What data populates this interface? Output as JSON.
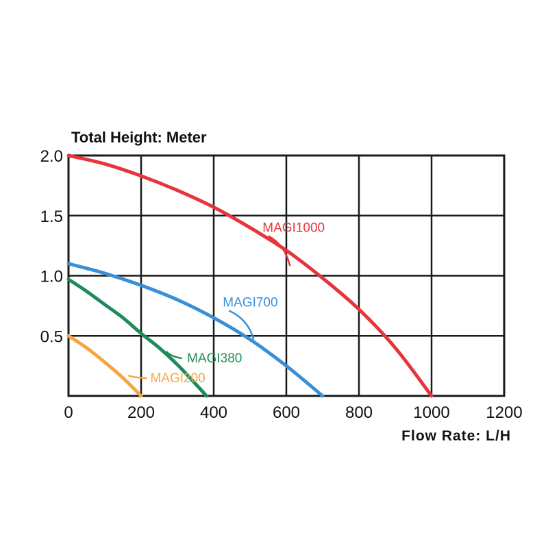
{
  "chart_data": {
    "type": "line",
    "title": "",
    "ylabel": "Total Height:  Meter",
    "xlabel": "Flow Rate:  L/H",
    "xlim": [
      0,
      1200
    ],
    "ylim": [
      0,
      2.0
    ],
    "x_ticks": [
      0,
      200,
      400,
      600,
      800,
      1000,
      1200
    ],
    "y_ticks": [
      0.5,
      1.0,
      1.5,
      2.0
    ],
    "x_tick_labels": [
      "0",
      "200",
      "400",
      "600",
      "800",
      "1000",
      "1200"
    ],
    "y_tick_labels": [
      "0.5",
      "1.0",
      "1.5",
      "2.0"
    ],
    "grid": true,
    "series": [
      {
        "name": "MAGI1000",
        "color": "#e8343b",
        "x": [
          0,
          100,
          200,
          300,
          400,
          500,
          600,
          700,
          800,
          900,
          1000
        ],
        "y": [
          2.0,
          1.93,
          1.83,
          1.71,
          1.57,
          1.4,
          1.21,
          0.98,
          0.72,
          0.4,
          0.0
        ],
        "label_at": [
          610,
          1.08
        ]
      },
      {
        "name": "MAGI700",
        "color": "#3a8fd6",
        "x": [
          0,
          100,
          200,
          300,
          400,
          500,
          600,
          700
        ],
        "y": [
          1.1,
          1.02,
          0.92,
          0.8,
          0.65,
          0.47,
          0.25,
          0.0
        ],
        "label_at": [
          510,
          0.47
        ]
      },
      {
        "name": "MAGI380",
        "color": "#1e8c5a",
        "x": [
          0,
          50,
          100,
          150,
          200,
          250,
          300,
          350,
          380
        ],
        "y": [
          0.97,
          0.87,
          0.76,
          0.65,
          0.52,
          0.4,
          0.26,
          0.1,
          0.0
        ],
        "label_at": [
          270,
          0.37
        ]
      },
      {
        "name": "MAGI200",
        "color": "#f5a640",
        "x": [
          0,
          50,
          100,
          150,
          200
        ],
        "y": [
          0.5,
          0.4,
          0.28,
          0.15,
          0.0
        ],
        "label_at": [
          165,
          0.17
        ]
      }
    ]
  }
}
